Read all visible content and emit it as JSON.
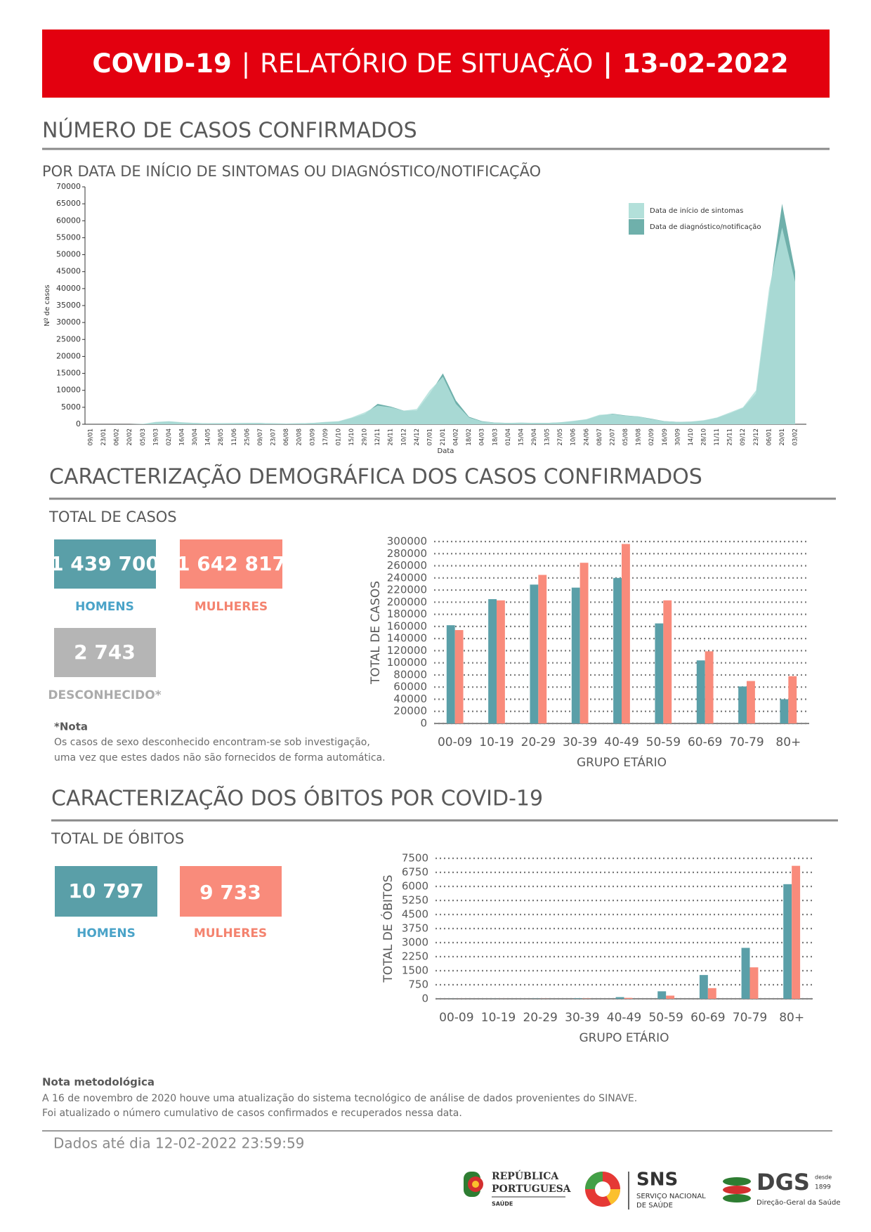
{
  "header": {
    "title": [
      "COVID-19",
      "|",
      "RELATÓRIO DE SITUAÇÃO",
      "|",
      "13-02-2022"
    ]
  },
  "cases_section": {
    "title": "NÚMERO DE CASOS CONFIRMADOS",
    "subtitle": "POR DATA DE INÍCIO DE SINTOMAS OU DIAGNÓSTICO/NOTIFICAÇÃO"
  },
  "demographics": {
    "title": "CARACTERIZAÇÃO DEMOGRÁFICA DOS CASOS CONFIRMADOS",
    "subtitle": "TOTAL DE CASOS",
    "kpis": [
      {
        "value": "1 439 700",
        "label": "HOMENS"
      },
      {
        "value": "1 642 817",
        "label": "MULHERES"
      },
      {
        "value": "2 743",
        "label": "DESCONHECIDO*"
      }
    ],
    "note": {
      "title": "*Nota",
      "lines": [
        "Os casos de sexo desconhecido encontram-se sob investigação,",
        "uma vez que estes dados não são fornecidos de forma automática."
      ]
    }
  },
  "deaths": {
    "title": "CARACTERIZAÇÃO DOS ÓBITOS POR COVID-19",
    "subtitle": "TOTAL DE ÓBITOS",
    "kpis": [
      {
        "value": "10 797",
        "label": "HOMENS"
      },
      {
        "value": "9 733",
        "label": "MULHERES"
      }
    ]
  },
  "methodology": {
    "title": "Nota metodológica",
    "lines": [
      "A 16 de novembro de 2020 houve uma atualização do sistema tecnológico de análise de dados provenientes do SINAVE.",
      "Foi atualizado o número cumulativo de casos confirmados e recuperados nessa data."
    ]
  },
  "footer": {
    "date": "Dados até dia 12-02-2022 23:59:59",
    "logos": {
      "republica": [
        "REPÚBLICA",
        "PORTUGUESA",
        "SAÚDE"
      ],
      "sns": [
        "SNS",
        "SERVIÇO NACIONAL",
        "DE SAÚDE"
      ],
      "dgs": [
        "DGS",
        "desde",
        "1899",
        "Direção-Geral da Saúde"
      ]
    }
  },
  "chart_data": [
    {
      "type": "area",
      "ylabel": "Nº de casos",
      "xlabel": "Data",
      "legend": "top-right",
      "categories": [
        "09/01",
        "23/01",
        "06/02",
        "20/02",
        "05/03",
        "19/03",
        "02/04",
        "16/04",
        "30/04",
        "14/05",
        "28/05",
        "11/06",
        "25/06",
        "09/07",
        "23/07",
        "06/08",
        "20/08",
        "03/09",
        "17/09",
        "01/10",
        "15/10",
        "29/10",
        "12/11",
        "26/11",
        "10/12",
        "24/12",
        "07/01",
        "21/01",
        "04/02",
        "18/02",
        "04/03",
        "18/03",
        "01/04",
        "15/04",
        "29/04",
        "13/05",
        "27/05",
        "10/06",
        "24/06",
        "08/07",
        "22/07",
        "05/08",
        "19/08",
        "02/09",
        "16/09",
        "30/09",
        "14/10",
        "28/10",
        "11/11",
        "25/11",
        "09/12",
        "23/12",
        "06/01",
        "20/01",
        "03/02"
      ],
      "series": [
        {
          "name": "Data de início de sintomas",
          "color": "#b3e0da",
          "values": [
            0,
            0,
            0,
            0,
            100,
            700,
            900,
            600,
            400,
            250,
            300,
            350,
            400,
            350,
            250,
            200,
            250,
            400,
            700,
            900,
            2000,
            3500,
            5500,
            5000,
            4000,
            4500,
            10000,
            14000,
            6000,
            2000,
            800,
            500,
            400,
            500,
            400,
            400,
            600,
            1000,
            1500,
            2800,
            3000,
            2500,
            2300,
            1500,
            900,
            700,
            800,
            1200,
            2000,
            3500,
            5000,
            10000,
            40000,
            58000,
            42000
          ]
        },
        {
          "name": "Data de diagnóstico/notificação",
          "color": "#6fb0ab",
          "values": [
            0,
            0,
            0,
            0,
            50,
            600,
            800,
            500,
            350,
            250,
            300,
            300,
            350,
            350,
            250,
            200,
            250,
            350,
            600,
            800,
            1800,
            3000,
            6000,
            5200,
            4000,
            4000,
            9000,
            15000,
            7000,
            2200,
            900,
            500,
            400,
            450,
            400,
            400,
            550,
            900,
            1400,
            2600,
            3100,
            2600,
            2300,
            1600,
            900,
            700,
            750,
            1100,
            1900,
            3200,
            4800,
            9000,
            38000,
            65000,
            45000
          ]
        }
      ],
      "ylim": [
        0,
        70000
      ],
      "yticks": [
        0,
        5000,
        10000,
        15000,
        20000,
        25000,
        30000,
        35000,
        40000,
        45000,
        50000,
        55000,
        60000,
        65000,
        70000
      ]
    },
    {
      "type": "bar",
      "ylabel": "TOTAL DE CASOS",
      "xlabel": "GRUPO ETÁRIO",
      "grid": true,
      "categories": [
        "00-09",
        "10-19",
        "20-29",
        "30-39",
        "40-49",
        "50-59",
        "60-69",
        "70-79",
        "80+"
      ],
      "series": [
        {
          "color": "#5a9fa8",
          "values": [
            162000,
            205000,
            229000,
            224000,
            240000,
            165000,
            104000,
            61000,
            40000
          ]
        },
        {
          "color": "#f98b7b",
          "values": [
            154000,
            203000,
            245000,
            265000,
            296000,
            203000,
            119000,
            70000,
            78000
          ]
        }
      ],
      "ylim": [
        0,
        300000
      ],
      "yticks": [
        0,
        20000,
        40000,
        60000,
        80000,
        100000,
        120000,
        140000,
        160000,
        180000,
        200000,
        220000,
        240000,
        260000,
        280000,
        300000
      ]
    },
    {
      "type": "bar",
      "ylabel": "TOTAL DE ÓBITOS",
      "xlabel": "GRUPO ETÁRIO",
      "grid": true,
      "categories": [
        "00-09",
        "10-19",
        "20-29",
        "30-39",
        "40-49",
        "50-59",
        "60-69",
        "70-79",
        "80+"
      ],
      "series": [
        {
          "color": "#5a9fa8",
          "values": [
            3,
            3,
            10,
            25,
            90,
            400,
            1270,
            2720,
            6120
          ]
        },
        {
          "color": "#f98b7b",
          "values": [
            2,
            2,
            5,
            15,
            50,
            170,
            570,
            1680,
            7100
          ]
        }
      ],
      "ylim": [
        0,
        7500
      ],
      "yticks": [
        0,
        750,
        1500,
        2250,
        3000,
        3750,
        4500,
        5250,
        6000,
        6750,
        7500
      ]
    }
  ]
}
